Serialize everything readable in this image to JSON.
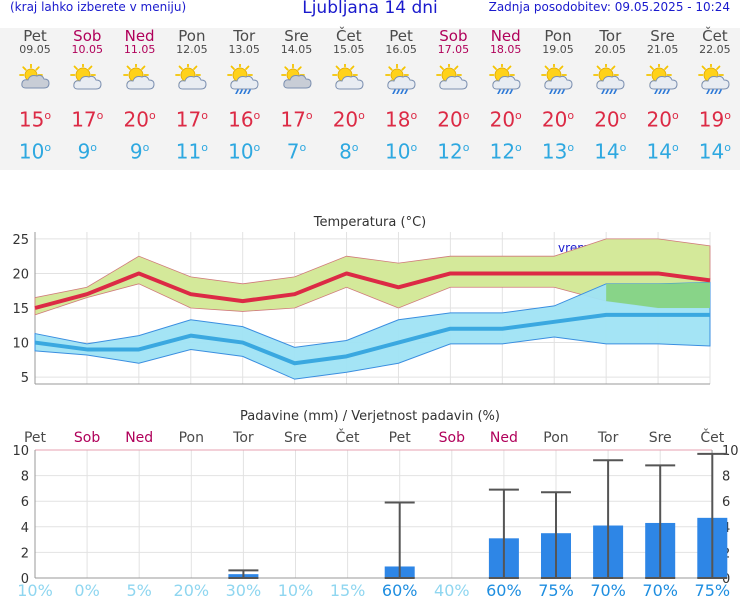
{
  "header": {
    "left_note": "(kraj lahko izberete v meniju)",
    "title": "Ljubljana 14 dni",
    "updated": "Zadnja posodobitev: 09.05.2025 - 10:24"
  },
  "days": [
    {
      "name": "Pet",
      "date": "09.05",
      "weekend": false,
      "icon": "partly-cloudy-icon",
      "tmax": "15",
      "tmin": "10"
    },
    {
      "name": "Sob",
      "date": "10.05",
      "weekend": true,
      "icon": "sun-cloud-icon",
      "tmax": "17",
      "tmin": "9"
    },
    {
      "name": "Ned",
      "date": "11.05",
      "weekend": true,
      "icon": "sun-cloud-icon",
      "tmax": "20",
      "tmin": "9"
    },
    {
      "name": "Pon",
      "date": "12.05",
      "weekend": false,
      "icon": "sun-cloud-icon",
      "tmax": "17",
      "tmin": "11"
    },
    {
      "name": "Tor",
      "date": "13.05",
      "weekend": false,
      "icon": "sun-rain-icon",
      "tmax": "16",
      "tmin": "10"
    },
    {
      "name": "Sre",
      "date": "14.05",
      "weekend": false,
      "icon": "partly-cloudy-icon",
      "tmax": "17",
      "tmin": "7"
    },
    {
      "name": "Čet",
      "date": "15.05",
      "weekend": false,
      "icon": "sun-cloud-icon",
      "tmax": "20",
      "tmin": "8"
    },
    {
      "name": "Pet",
      "date": "16.05",
      "weekend": false,
      "icon": "rain-cloud-icon",
      "tmax": "18",
      "tmin": "10"
    },
    {
      "name": "Sob",
      "date": "17.05",
      "weekend": true,
      "icon": "sun-cloud-icon",
      "tmax": "20",
      "tmin": "12"
    },
    {
      "name": "Ned",
      "date": "18.05",
      "weekend": true,
      "icon": "sun-rain-icon",
      "tmax": "20",
      "tmin": "12"
    },
    {
      "name": "Pon",
      "date": "19.05",
      "weekend": false,
      "icon": "sun-rain-icon",
      "tmax": "20",
      "tmin": "13"
    },
    {
      "name": "Tor",
      "date": "20.05",
      "weekend": false,
      "icon": "sun-rain-icon",
      "tmax": "20",
      "tmin": "14"
    },
    {
      "name": "Sre",
      "date": "21.05",
      "weekend": false,
      "icon": "sun-rain-icon",
      "tmax": "20",
      "tmin": "14"
    },
    {
      "name": "Čet",
      "date": "22.05",
      "weekend": false,
      "icon": "sun-rain-icon",
      "tmax": "19",
      "tmin": "14"
    }
  ],
  "colors": {
    "max_line": "#dc2a45",
    "max_band": "#d4e99a",
    "min_line": "#3aa8e0",
    "min_band": "#9fe3f4",
    "overlap_band": "#88d488",
    "bar": "#2e86e6",
    "weekend": "#b0005a",
    "weekday": "#4a4a4a",
    "prob_low": "#8fd6f0",
    "prob_high": "#1e8ee0"
  },
  "chart_data": [
    {
      "type": "line",
      "title": "Temperatura (°C)",
      "watermark": "vreme.us",
      "ylim": [
        4,
        26
      ],
      "yticks": [
        5,
        10,
        15,
        20,
        25
      ],
      "grid": true,
      "x": [
        "09.05",
        "10.05",
        "11.05",
        "12.05",
        "13.05",
        "14.05",
        "15.05",
        "16.05",
        "17.05",
        "18.05",
        "19.05",
        "20.05",
        "21.05",
        "22.05"
      ],
      "series": [
        {
          "role": "tmax",
          "values": [
            15,
            17,
            20,
            17,
            16,
            17,
            20,
            18,
            20,
            20,
            20,
            20,
            20,
            19
          ],
          "band_low": [
            14,
            16.5,
            18.5,
            15,
            14.5,
            15,
            18,
            15,
            18,
            18,
            18,
            16,
            15,
            15
          ],
          "band_high": [
            16.5,
            18,
            22.5,
            19.5,
            18.5,
            19.5,
            22.5,
            21.5,
            22.5,
            22.5,
            22.5,
            25,
            25,
            24
          ]
        },
        {
          "role": "tmin",
          "values": [
            10,
            9,
            9,
            11,
            10,
            7,
            8,
            10,
            12,
            12,
            13,
            14,
            14,
            14
          ],
          "band_low": [
            8.8,
            8.2,
            7,
            9,
            8,
            4.7,
            5.7,
            7,
            9.8,
            9.8,
            10.8,
            9.8,
            9.8,
            9.5
          ],
          "band_high": [
            11.3,
            9.8,
            11,
            13.3,
            12.3,
            9.3,
            10.3,
            13.3,
            14.3,
            14.3,
            15.3,
            18.5,
            18.5,
            18.7
          ]
        }
      ]
    },
    {
      "type": "bar",
      "title": "Padavine (mm) / Verjetnost padavin (%)",
      "ylim": [
        0,
        10
      ],
      "yticks": [
        0,
        2,
        4,
        6,
        8,
        10
      ],
      "categories": [
        "Pet",
        "Sob",
        "Ned",
        "Pon",
        "Tor",
        "Sre",
        "Čet",
        "Pet",
        "Sob",
        "Ned",
        "Pon",
        "Tor",
        "Sre",
        "Čet"
      ],
      "weekend": [
        false,
        true,
        true,
        false,
        false,
        false,
        false,
        false,
        true,
        true,
        false,
        false,
        false,
        false
      ],
      "values": [
        0,
        0,
        0,
        0,
        0.3,
        0,
        0,
        0.9,
        0,
        3.1,
        3.5,
        4.1,
        4.3,
        4.7
      ],
      "error_high": [
        0,
        0,
        0,
        0,
        0.6,
        0,
        0,
        5.9,
        0,
        6.9,
        6.7,
        9.2,
        8.8,
        9.7
      ],
      "probability": [
        "10%",
        "0%",
        "5%",
        "20%",
        "30%",
        "10%",
        "15%",
        "60%",
        "40%",
        "60%",
        "75%",
        "70%",
        "70%",
        "75%"
      ],
      "probability_value": [
        10,
        0,
        5,
        20,
        30,
        10,
        15,
        60,
        40,
        60,
        75,
        70,
        70,
        75
      ]
    }
  ]
}
